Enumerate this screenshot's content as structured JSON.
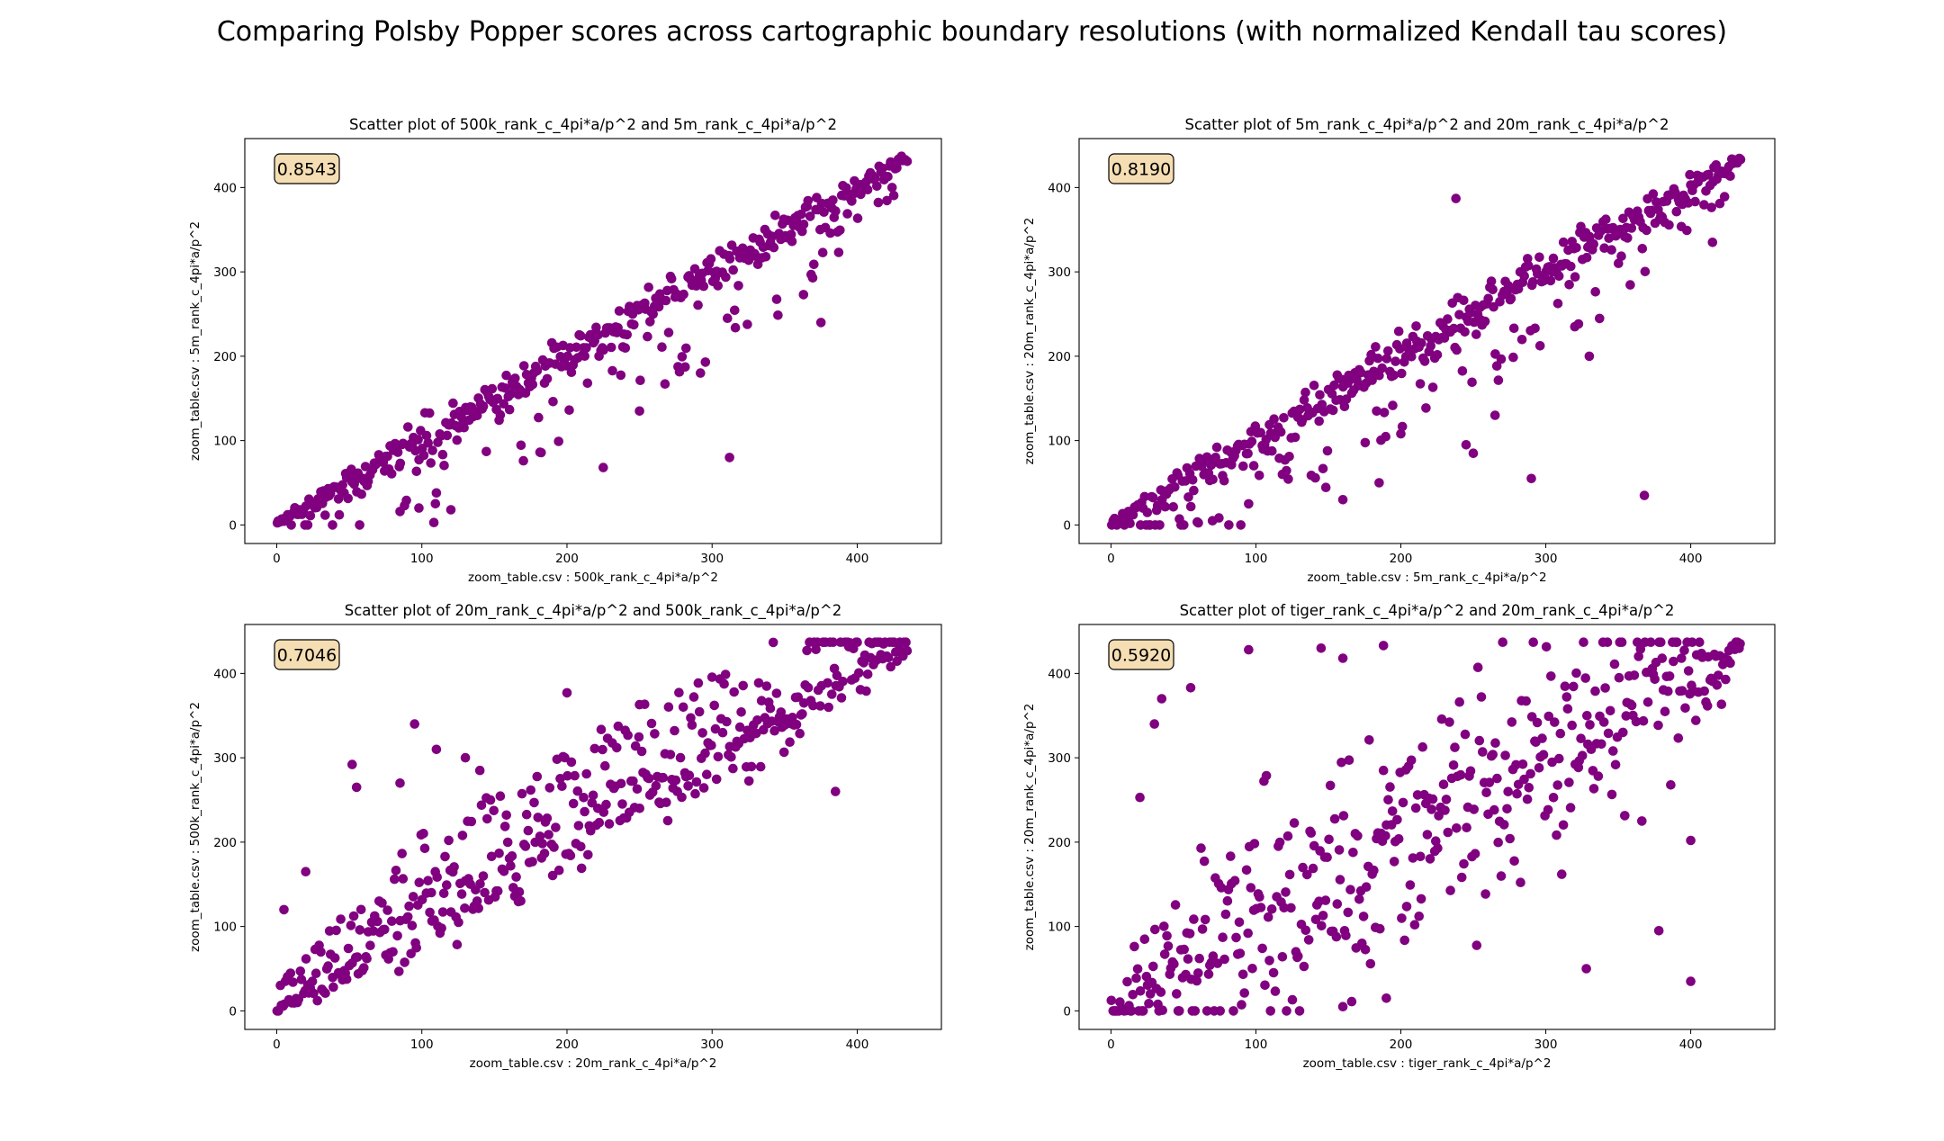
{
  "figure_title": "Comparing Polsby Popper scores across cartographic boundary resolutions (with normalized Kendall tau scores)",
  "point_color": "#800080",
  "score_box_fill": "#f5deb3",
  "chart_data": [
    {
      "type": "scatter",
      "title": "Scatter plot of 500k_rank_c_4pi*a/p^2 and 5m_rank_c_4pi*a/p^2",
      "xlabel": "zoom_table.csv : 500k_rank_c_4pi*a/p^2",
      "ylabel": "zoom_table.csv : 5m_rank_c_4pi*a/p^2",
      "score": "0.8543",
      "xlim": [
        -22,
        458
      ],
      "ylim": [
        -22,
        458
      ],
      "xticks": [
        0,
        100,
        200,
        300,
        400
      ],
      "yticks": [
        0,
        100,
        200,
        300,
        400
      ],
      "noise": 12,
      "outlier_rate": 0.12,
      "outlier_dir": "below",
      "outliers": [
        [
          312,
          80
        ],
        [
          225,
          68
        ],
        [
          292,
          180
        ],
        [
          170,
          76
        ],
        [
          85,
          16
        ],
        [
          98,
          20
        ],
        [
          375,
          240
        ],
        [
          363,
          273
        ],
        [
          250,
          135
        ],
        [
          120,
          18
        ]
      ]
    },
    {
      "type": "scatter",
      "title": "Scatter plot of 5m_rank_c_4pi*a/p^2 and 20m_rank_c_4pi*a/p^2",
      "xlabel": "zoom_table.csv : 5m_rank_c_4pi*a/p^2",
      "ylabel": "zoom_table.csv : 20m_rank_c_4pi*a/p^2",
      "score": "0.8190",
      "xlim": [
        -22,
        458
      ],
      "ylim": [
        -22,
        458
      ],
      "xticks": [
        0,
        100,
        200,
        300,
        400
      ],
      "yticks": [
        0,
        100,
        200,
        300,
        400
      ],
      "noise": 14,
      "outlier_rate": 0.15,
      "outlier_dir": "below",
      "outliers": [
        [
          238,
          387
        ],
        [
          368,
          35
        ],
        [
          290,
          55
        ],
        [
          160,
          30
        ],
        [
          185,
          50
        ],
        [
          245,
          95
        ],
        [
          250,
          85
        ],
        [
          70,
          5
        ],
        [
          330,
          200
        ],
        [
          320,
          235
        ],
        [
          415,
          335
        ],
        [
          200,
          108
        ],
        [
          95,
          25
        ],
        [
          265,
          130
        ]
      ]
    },
    {
      "type": "scatter",
      "title": "Scatter plot of 20m_rank_c_4pi*a/p^2 and 500k_rank_c_4pi*a/p^2",
      "xlabel": "zoom_table.csv : 20m_rank_c_4pi*a/p^2",
      "ylabel": "zoom_table.csv : 500k_rank_c_4pi*a/p^2",
      "score": "0.7046",
      "xlim": [
        -22,
        458
      ],
      "ylim": [
        -22,
        458
      ],
      "xticks": [
        0,
        100,
        200,
        300,
        400
      ],
      "yticks": [
        0,
        100,
        200,
        300,
        400
      ],
      "noise": 20,
      "outlier_rate": 0.35,
      "outlier_dir": "above",
      "outliers": [
        [
          35,
          415
        ],
        [
          95,
          340
        ],
        [
          200,
          377
        ],
        [
          52,
          292
        ],
        [
          130,
          300
        ],
        [
          85,
          270
        ],
        [
          20,
          165
        ],
        [
          5,
          120
        ],
        [
          55,
          265
        ],
        [
          110,
          310
        ],
        [
          385,
          260
        ],
        [
          250,
          363
        ],
        [
          140,
          285
        ]
      ]
    },
    {
      "type": "scatter",
      "title": "Scatter plot of tiger_rank_c_4pi*a/p^2 and 20m_rank_c_4pi*a/p^2",
      "xlabel": "zoom_table.csv : tiger_rank_c_4pi*a/p^2",
      "ylabel": "zoom_table.csv : 20m_rank_c_4pi*a/p^2",
      "score": "0.5920",
      "xlim": [
        -22,
        458
      ],
      "ylim": [
        -22,
        458
      ],
      "xticks": [
        0,
        100,
        200,
        300,
        400
      ],
      "yticks": [
        0,
        100,
        200,
        300,
        400
      ],
      "noise": 55,
      "outlier_rate": 0.18,
      "outlier_dir": "both",
      "outliers": [
        [
          95,
          428
        ],
        [
          145,
          430
        ],
        [
          160,
          418
        ],
        [
          188,
          433
        ],
        [
          30,
          340
        ],
        [
          55,
          383
        ],
        [
          20,
          253
        ],
        [
          400,
          35
        ],
        [
          328,
          50
        ],
        [
          378,
          95
        ],
        [
          400,
          202
        ],
        [
          190,
          15
        ],
        [
          160,
          5
        ],
        [
          35,
          370
        ]
      ]
    }
  ]
}
